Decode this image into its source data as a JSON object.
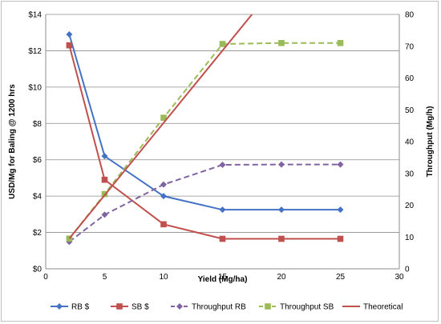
{
  "chart_data": {
    "type": "line",
    "xlabel": "Yield (Mg/ha)",
    "ylabel": "USD/Mg for Baling @ 1200 hrs",
    "y2label": "Throughput (Mg/h)",
    "xlim": [
      0,
      30
    ],
    "ylim": [
      0,
      14
    ],
    "y2lim": [
      0,
      80
    ],
    "x_ticks": [
      "0",
      "5",
      "10",
      "15",
      "20",
      "25",
      "30"
    ],
    "y_ticks": [
      "$0",
      "$2",
      "$4",
      "$6",
      "$8",
      "$10",
      "$12",
      "$14"
    ],
    "y2_ticks": [
      "0",
      "10",
      "20",
      "30",
      "40",
      "50",
      "60",
      "70",
      "80"
    ],
    "grid": "horizontal",
    "legend_position": "bottom",
    "series": [
      {
        "name": "RB $",
        "axis": "left",
        "color": "#4472C4",
        "marker": "diamond",
        "dash": "solid",
        "x": [
          2,
          5,
          10,
          15,
          20,
          25
        ],
        "values": [
          12.9,
          6.2,
          4.0,
          3.25,
          3.25,
          3.25
        ]
      },
      {
        "name": "SB $",
        "axis": "left",
        "color": "#C0504D",
        "marker": "square",
        "dash": "solid",
        "x": [
          2,
          5,
          10,
          15,
          20,
          25
        ],
        "values": [
          12.3,
          4.9,
          2.45,
          1.65,
          1.65,
          1.65
        ]
      },
      {
        "name": "Throughput RB",
        "axis": "right",
        "color": "#8064A2",
        "marker": "diamond",
        "dash": "dashed",
        "x": [
          2,
          5,
          10,
          15,
          20,
          25
        ],
        "values": [
          8.5,
          17,
          26.5,
          32.7,
          32.8,
          32.8
        ]
      },
      {
        "name": "Throughput SB",
        "axis": "right",
        "color": "#9BBB59",
        "marker": "square",
        "dash": "dashed",
        "x": [
          2,
          5,
          10,
          15,
          20,
          25
        ],
        "values": [
          9.5,
          23.5,
          47.5,
          70.7,
          71,
          71
        ]
      },
      {
        "name": "Theoretical",
        "axis": "right",
        "color": "#C0504D",
        "marker": "none",
        "dash": "solid",
        "x": [
          2,
          17.5
        ],
        "values": [
          9.5,
          80
        ]
      }
    ]
  }
}
